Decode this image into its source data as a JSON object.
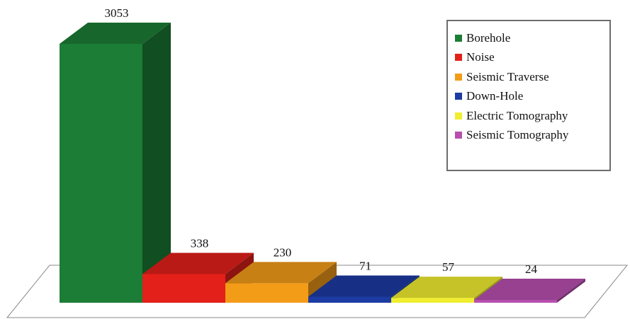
{
  "chart_data": {
    "type": "bar",
    "style": "3d",
    "categories": [
      "Borehole",
      "Noise",
      "Seismic Traverse",
      "Down-Hole",
      "Electric Tomography",
      "Seismic Tomography"
    ],
    "values": [
      3053,
      338,
      230,
      71,
      57,
      24
    ],
    "colors": [
      "#1c7d36",
      "#e32019",
      "#f39c18",
      "#1c3ba3",
      "#f0ee2f",
      "#b84fb0"
    ],
    "legend_position": "top-right",
    "data_labels": true,
    "grid": false
  },
  "legend": {
    "items": [
      {
        "label": "Borehole",
        "color": "#1c7d36"
      },
      {
        "label": "Noise",
        "color": "#e32019"
      },
      {
        "label": "Seismic Traverse",
        "color": "#f39c18"
      },
      {
        "label": "Down-Hole",
        "color": "#1c3ba3"
      },
      {
        "label": "Electric Tomography",
        "color": "#f0ee2f"
      },
      {
        "label": "Seismic Tomography",
        "color": "#b84fb0"
      }
    ]
  }
}
